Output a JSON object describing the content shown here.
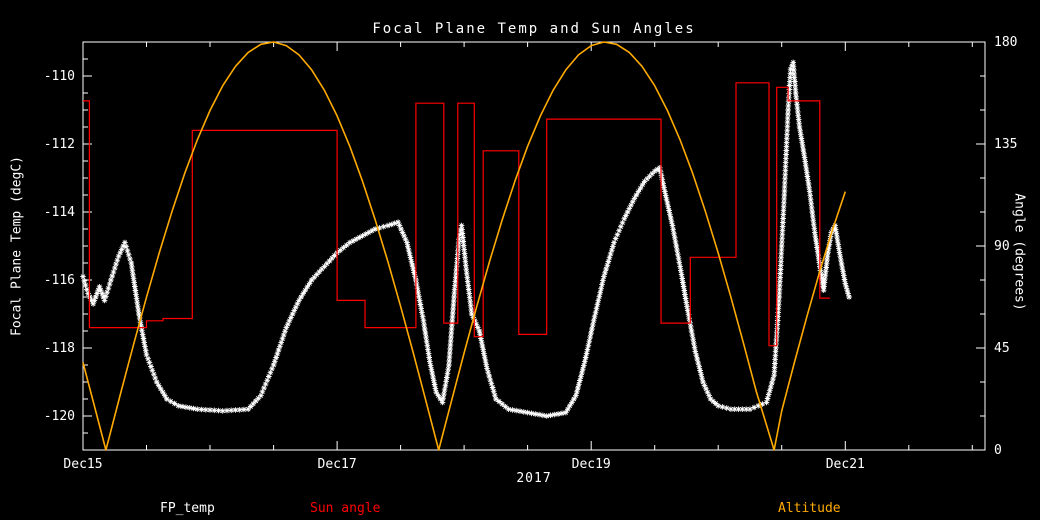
{
  "title": "Focal Plane Temp and Sun Angles",
  "colors": {
    "background": "#000000",
    "foreground": "#ffffff",
    "fp_temp": "#ffffff",
    "sun_angle": "#ff0000",
    "altitude": "#ffaa00"
  },
  "legend": [
    {
      "label": "FP_temp",
      "color": "#ffffff"
    },
    {
      "label": "Sun angle",
      "color": "#ff0000"
    },
    {
      "label": "Altitude",
      "color": "#ffaa00"
    }
  ],
  "chart_data": {
    "type": "line",
    "title": "Focal Plane Temp and Sun Angles",
    "xlabel": "2017",
    "x_tick_labels": [
      "Dec15",
      "Dec17",
      "Dec19",
      "Dec21"
    ],
    "x_tick_values": [
      15,
      17,
      19,
      21
    ],
    "x_minor_step": 0.5,
    "x_range": [
      15,
      22.1
    ],
    "grid": false,
    "legend_position": "bottom",
    "left_axis": {
      "label": "Focal Plane Temp (degC)",
      "range": [
        -121,
        -109
      ],
      "ticks": [
        -110,
        -112,
        -114,
        -116,
        -118,
        -120
      ],
      "minor_step": 0.5
    },
    "right_axis": {
      "label": "Angle (degrees)",
      "range": [
        0,
        180
      ],
      "ticks": [
        0,
        45,
        90,
        135,
        180
      ],
      "minor_step": 15
    },
    "series": [
      {
        "name": "FP_temp",
        "axis": "left",
        "style": "markers",
        "color": "#ffffff",
        "points": [
          [
            15.0,
            -115.9
          ],
          [
            15.04,
            -116.4
          ],
          [
            15.08,
            -116.7
          ],
          [
            15.13,
            -116.2
          ],
          [
            15.17,
            -116.6
          ],
          [
            15.22,
            -116.0
          ],
          [
            15.28,
            -115.3
          ],
          [
            15.33,
            -114.9
          ],
          [
            15.38,
            -115.5
          ],
          [
            15.44,
            -117.0
          ],
          [
            15.5,
            -118.2
          ],
          [
            15.58,
            -119.0
          ],
          [
            15.66,
            -119.5
          ],
          [
            15.75,
            -119.7
          ],
          [
            15.9,
            -119.8
          ],
          [
            16.1,
            -119.85
          ],
          [
            16.3,
            -119.8
          ],
          [
            16.4,
            -119.4
          ],
          [
            16.5,
            -118.5
          ],
          [
            16.6,
            -117.4
          ],
          [
            16.7,
            -116.6
          ],
          [
            16.8,
            -116.0
          ],
          [
            16.9,
            -115.6
          ],
          [
            17.0,
            -115.2
          ],
          [
            17.1,
            -114.9
          ],
          [
            17.2,
            -114.7
          ],
          [
            17.3,
            -114.5
          ],
          [
            17.4,
            -114.4
          ],
          [
            17.48,
            -114.3
          ],
          [
            17.55,
            -114.9
          ],
          [
            17.62,
            -116.0
          ],
          [
            17.68,
            -117.2
          ],
          [
            17.73,
            -118.4
          ],
          [
            17.78,
            -119.3
          ],
          [
            17.83,
            -119.6
          ],
          [
            17.88,
            -118.5
          ],
          [
            17.92,
            -116.5
          ],
          [
            17.96,
            -114.8
          ],
          [
            17.98,
            -114.4
          ],
          [
            18.02,
            -115.8
          ],
          [
            18.06,
            -117.0
          ],
          [
            18.12,
            -117.5
          ],
          [
            18.18,
            -118.6
          ],
          [
            18.25,
            -119.5
          ],
          [
            18.35,
            -119.8
          ],
          [
            18.5,
            -119.9
          ],
          [
            18.65,
            -120.0
          ],
          [
            18.8,
            -119.9
          ],
          [
            18.88,
            -119.4
          ],
          [
            18.95,
            -118.4
          ],
          [
            19.02,
            -117.2
          ],
          [
            19.1,
            -115.9
          ],
          [
            19.18,
            -114.9
          ],
          [
            19.26,
            -114.2
          ],
          [
            19.34,
            -113.6
          ],
          [
            19.42,
            -113.1
          ],
          [
            19.5,
            -112.8
          ],
          [
            19.54,
            -112.7
          ],
          [
            19.58,
            -113.4
          ],
          [
            19.64,
            -114.4
          ],
          [
            19.7,
            -115.6
          ],
          [
            19.76,
            -116.9
          ],
          [
            19.82,
            -118.1
          ],
          [
            19.88,
            -119.0
          ],
          [
            19.94,
            -119.5
          ],
          [
            20.0,
            -119.7
          ],
          [
            20.1,
            -119.8
          ],
          [
            20.25,
            -119.8
          ],
          [
            20.38,
            -119.6
          ],
          [
            20.44,
            -118.8
          ],
          [
            20.48,
            -116.5
          ],
          [
            20.52,
            -113.5
          ],
          [
            20.55,
            -111.0
          ],
          [
            20.57,
            -109.8
          ],
          [
            20.59,
            -109.6
          ],
          [
            20.61,
            -110.5
          ],
          [
            20.64,
            -111.5
          ],
          [
            20.68,
            -112.4
          ],
          [
            20.72,
            -113.4
          ],
          [
            20.76,
            -114.6
          ],
          [
            20.8,
            -115.6
          ],
          [
            20.83,
            -116.3
          ],
          [
            20.86,
            -115.3
          ],
          [
            20.89,
            -114.6
          ],
          [
            20.92,
            -114.4
          ],
          [
            20.96,
            -115.3
          ],
          [
            21.0,
            -116.1
          ],
          [
            21.03,
            -116.5
          ]
        ]
      },
      {
        "name": "Sun angle",
        "axis": "right",
        "style": "steps",
        "color": "#ff0000",
        "end_x": 20.88,
        "points": [
          [
            15.0,
            154
          ],
          [
            15.05,
            54
          ],
          [
            15.5,
            57
          ],
          [
            15.63,
            58
          ],
          [
            15.86,
            141
          ],
          [
            17.0,
            66
          ],
          [
            17.22,
            54
          ],
          [
            17.62,
            153
          ],
          [
            17.84,
            56
          ],
          [
            17.95,
            153
          ],
          [
            18.08,
            50
          ],
          [
            18.15,
            132
          ],
          [
            18.43,
            51
          ],
          [
            18.65,
            146
          ],
          [
            19.55,
            56
          ],
          [
            19.78,
            85
          ],
          [
            20.14,
            162
          ],
          [
            20.4,
            46
          ],
          [
            20.46,
            160
          ],
          [
            20.55,
            154
          ],
          [
            20.8,
            67
          ]
        ]
      },
      {
        "name": "Altitude",
        "axis": "right",
        "style": "line",
        "color": "#ffaa00",
        "points": [
          [
            15.0,
            38.6
          ],
          [
            15.1,
            17.2
          ],
          [
            15.18,
            0
          ],
          [
            15.3,
            25.8
          ],
          [
            15.4,
            46.9
          ],
          [
            15.5,
            67.4
          ],
          [
            15.6,
            86.9
          ],
          [
            15.7,
            105.1
          ],
          [
            15.8,
            121.9
          ],
          [
            15.9,
            136.8
          ],
          [
            16.0,
            149.8
          ],
          [
            16.1,
            160.7
          ],
          [
            16.2,
            169.3
          ],
          [
            16.3,
            175.4
          ],
          [
            16.4,
            179.0
          ],
          [
            16.5,
            180.0
          ],
          [
            16.6,
            178.4
          ],
          [
            16.7,
            174.3
          ],
          [
            16.8,
            167.7
          ],
          [
            16.9,
            158.7
          ],
          [
            17.0,
            147.4
          ],
          [
            17.1,
            134.0
          ],
          [
            17.2,
            118.6
          ],
          [
            17.3,
            101.5
          ],
          [
            17.4,
            83.1
          ],
          [
            17.5,
            63.4
          ],
          [
            17.6,
            42.8
          ],
          [
            17.7,
            21.5
          ],
          [
            17.8,
            0.0
          ],
          [
            17.9,
            21.5
          ],
          [
            18.0,
            42.8
          ],
          [
            18.1,
            63.4
          ],
          [
            18.2,
            83.1
          ],
          [
            18.3,
            101.5
          ],
          [
            18.4,
            118.6
          ],
          [
            18.5,
            134.0
          ],
          [
            18.6,
            147.4
          ],
          [
            18.7,
            158.7
          ],
          [
            18.8,
            167.7
          ],
          [
            18.9,
            174.3
          ],
          [
            19.0,
            178.4
          ],
          [
            19.1,
            180.0
          ],
          [
            19.2,
            179.0
          ],
          [
            19.3,
            175.4
          ],
          [
            19.4,
            169.3
          ],
          [
            19.5,
            160.7
          ],
          [
            19.6,
            149.8
          ],
          [
            19.7,
            136.8
          ],
          [
            19.8,
            121.9
          ],
          [
            19.9,
            105.1
          ],
          [
            20.0,
            86.9
          ],
          [
            20.1,
            67.4
          ],
          [
            20.2,
            46.9
          ],
          [
            20.3,
            25.8
          ],
          [
            20.44,
            0.0
          ],
          [
            20.5,
            17.2
          ],
          [
            20.6,
            38.6
          ],
          [
            20.7,
            59.2
          ],
          [
            20.8,
            78.9
          ],
          [
            20.9,
            97.2
          ],
          [
            21.0,
            114.0
          ]
        ]
      }
    ]
  }
}
